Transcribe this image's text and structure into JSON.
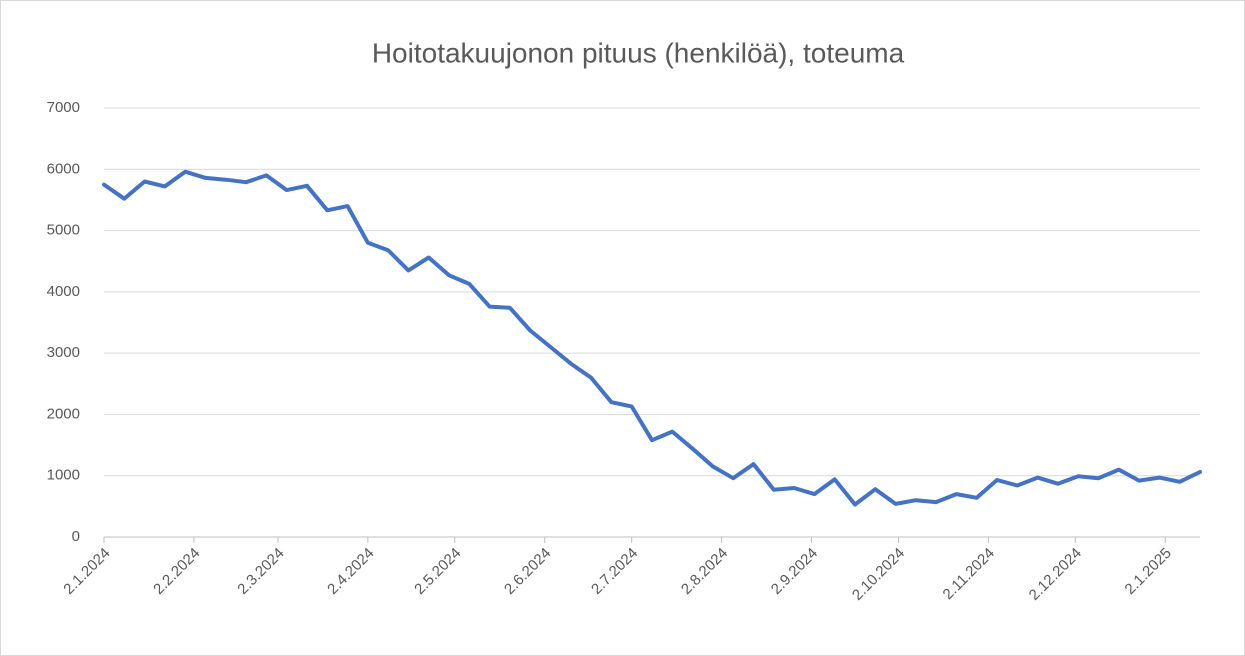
{
  "chart_data": {
    "type": "line",
    "title": "Hoitotakuujonon pituus (henkilöä), toteuma",
    "x": [
      "2.1.2024",
      "9.1.2024",
      "16.1.2024",
      "23.1.2024",
      "30.1.2024",
      "6.2.2024",
      "13.2.2024",
      "20.2.2024",
      "27.2.2024",
      "5.3.2024",
      "12.3.2024",
      "19.3.2024",
      "26.3.2024",
      "2.4.2024",
      "9.4.2024",
      "16.4.2024",
      "23.4.2024",
      "30.4.2024",
      "7.5.2024",
      "14.5.2024",
      "21.5.2024",
      "28.5.2024",
      "4.6.2024",
      "11.6.2024",
      "18.6.2024",
      "25.6.2024",
      "2.7.2024",
      "9.7.2024",
      "16.7.2024",
      "23.7.2024",
      "30.7.2024",
      "6.8.2024",
      "13.8.2024",
      "20.8.2024",
      "27.8.2024",
      "3.9.2024",
      "10.9.2024",
      "17.9.2024",
      "24.9.2024",
      "1.10.2024",
      "8.10.2024",
      "15.10.2024",
      "22.10.2024",
      "29.10.2024",
      "5.11.2024",
      "12.11.2024",
      "19.11.2024",
      "26.11.2024",
      "3.12.2024",
      "10.12.2024",
      "17.12.2024",
      "24.12.2024",
      "31.12.2024",
      "7.1.2025",
      "14.1.2025"
    ],
    "series": [
      {
        "name": "Hoitotakuujonon pituus",
        "color": "#4472c4",
        "values": [
          5750,
          5520,
          5800,
          5720,
          5960,
          5860,
          5830,
          5790,
          5900,
          5660,
          5730,
          5330,
          5400,
          4800,
          4680,
          4350,
          4560,
          4270,
          4130,
          3760,
          3740,
          3370,
          3100,
          2830,
          2600,
          2200,
          2130,
          1580,
          1720,
          1440,
          1150,
          960,
          1190,
          770,
          800,
          700,
          940,
          530,
          780,
          540,
          600,
          570,
          700,
          640,
          930,
          840,
          970,
          870,
          990,
          960,
          1100,
          920,
          970,
          900,
          1060
        ]
      }
    ],
    "xlim": [
      "2.1.2024",
      "14.1.2025"
    ],
    "xticks": [
      "2.1.2024",
      "2.2.2024",
      "2.3.2024",
      "2.4.2024",
      "2.5.2024",
      "2.6.2024",
      "2.7.2024",
      "2.8.2024",
      "2.9.2024",
      "2.10.2024",
      "2.11.2024",
      "2.12.2024",
      "2.1.2025"
    ],
    "ylim": [
      0,
      7000
    ],
    "yticks": [
      0,
      1000,
      2000,
      3000,
      4000,
      5000,
      6000,
      7000
    ],
    "grid": true
  }
}
